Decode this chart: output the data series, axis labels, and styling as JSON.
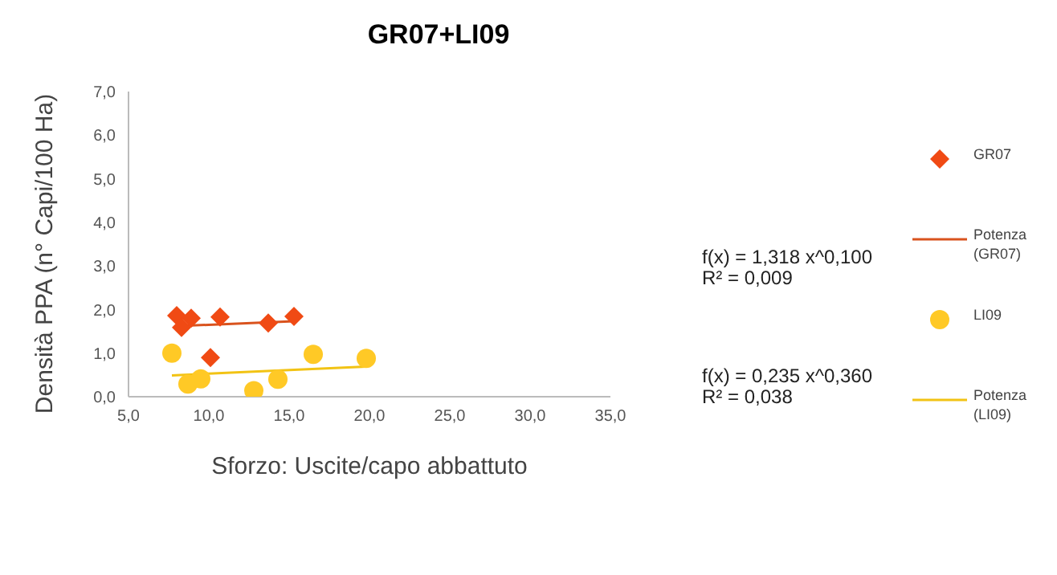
{
  "chart_data": {
    "type": "scatter",
    "title": "GR07+LI09",
    "xlabel": "Sforzo: Uscite/capo abbattuto",
    "ylabel": "Densità  PPA (n° Capi/100 Ha)",
    "xlim": [
      5,
      35
    ],
    "xticks": [
      {
        "value": 5,
        "label": "5,0"
      },
      {
        "value": 10,
        "label": "10,0"
      },
      {
        "value": 15,
        "label": "15,0"
      },
      {
        "value": 20,
        "label": "20,0"
      },
      {
        "value": 25,
        "label": "25,0"
      },
      {
        "value": 30,
        "label": "30,0"
      },
      {
        "value": 35,
        "label": "35,0"
      }
    ],
    "ylim": [
      0,
      7
    ],
    "yticks": [
      {
        "value": 0,
        "label": "0,0"
      },
      {
        "value": 1,
        "label": "1,0"
      },
      {
        "value": 2,
        "label": "2,0"
      },
      {
        "value": 3,
        "label": "3,0"
      },
      {
        "value": 4,
        "label": "4,0"
      },
      {
        "value": 5,
        "label": "5,0"
      },
      {
        "value": 6,
        "label": "6,0"
      },
      {
        "value": 7,
        "label": "7,0"
      }
    ],
    "grid": false,
    "legend": "right",
    "series": [
      {
        "name": "GR07",
        "marker": "diamond",
        "color": "#f04a14",
        "x": [
          8.0,
          8.3,
          8.9,
          10.1,
          10.7,
          13.7,
          15.3
        ],
        "values": [
          1.86,
          1.59,
          1.8,
          0.9,
          1.83,
          1.69,
          1.84
        ]
      },
      {
        "name": "Potenza (GR07)",
        "type": "line",
        "color": "#d9531e",
        "x": [
          8.0,
          15.3
        ],
        "values": [
          1.62,
          1.73
        ]
      },
      {
        "name": "LI09",
        "marker": "circle",
        "color": "#ffc926",
        "x": [
          7.7,
          8.7,
          9.5,
          12.8,
          14.3,
          16.5,
          19.8
        ],
        "values": [
          1.0,
          0.29,
          0.41,
          0.14,
          0.4,
          0.97,
          0.88
        ]
      },
      {
        "name": "Potenza (LI09)",
        "type": "line",
        "color": "#f2c314",
        "x": [
          7.7,
          19.8
        ],
        "values": [
          0.49,
          0.69
        ]
      }
    ],
    "annotations": [
      "f(x) = 1,318 x^0,100\nR² = 0,009",
      "f(x) = 0,235 x^0,360\nR² = 0,038"
    ]
  }
}
